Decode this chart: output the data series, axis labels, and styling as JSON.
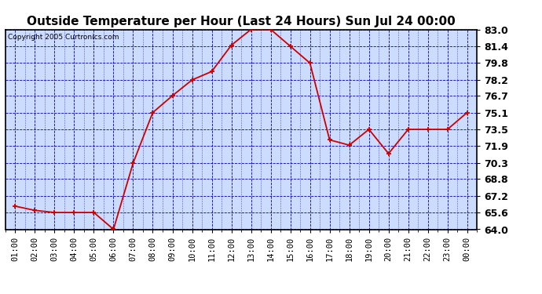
{
  "title": "Outside Temperature per Hour (Last 24 Hours) Sun Jul 24 00:00",
  "copyright": "Copyright 2005 Curtronics.com",
  "x_labels": [
    "01:00",
    "02:00",
    "03:00",
    "04:00",
    "05:00",
    "06:00",
    "07:00",
    "08:00",
    "09:00",
    "10:00",
    "11:00",
    "12:00",
    "13:00",
    "14:00",
    "15:00",
    "16:00",
    "17:00",
    "18:00",
    "19:00",
    "20:00",
    "21:00",
    "22:00",
    "23:00",
    "00:00"
  ],
  "y_values": [
    66.2,
    65.8,
    65.6,
    65.6,
    65.6,
    64.0,
    70.3,
    75.1,
    76.7,
    78.2,
    79.0,
    81.5,
    83.0,
    83.0,
    81.4,
    79.8,
    72.5,
    72.0,
    73.5,
    71.2,
    73.5,
    73.5,
    73.5,
    75.1
  ],
  "line_color": "#cc0000",
  "marker_color": "#cc0000",
  "plot_bg_color": "#ccdcff",
  "outer_bg_color": "#ffffff",
  "grid_color": "#0000bb",
  "title_color": "#000000",
  "ylim": [
    64.0,
    83.0
  ],
  "yticks": [
    64.0,
    65.6,
    67.2,
    68.8,
    70.3,
    71.9,
    73.5,
    75.1,
    76.7,
    78.2,
    79.8,
    81.4,
    83.0
  ],
  "title_fontsize": 11,
  "axis_fontsize": 7.5,
  "copyright_fontsize": 6.5,
  "ytick_fontsize": 9,
  "ytick_fontweight": "bold"
}
